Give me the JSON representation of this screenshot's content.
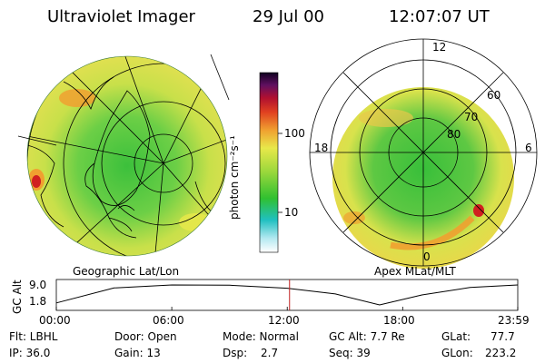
{
  "header": {
    "title": "Ultraviolet Imager",
    "date": "29 Jul 00",
    "time": "12:07:07 UT"
  },
  "colorbar": {
    "unit_label": "photon cm⁻²s⁻¹",
    "ticks": [
      "100",
      "10"
    ]
  },
  "geo_panel": {
    "label": "Geographic Lat/Lon"
  },
  "apex_panel": {
    "label": "Apex MLat/MLT",
    "mlt_labels": [
      "12",
      "18",
      "6",
      "0"
    ],
    "lat_labels": [
      "60",
      "70",
      "80"
    ]
  },
  "altitude_plot": {
    "axis_label": "GC Alt",
    "y_ticks": [
      "9.0",
      "1.8"
    ],
    "x_ticks": [
      "00:00",
      "06:00",
      "12:00",
      "18:00",
      "23:59"
    ],
    "current_time_hours": 12.12,
    "altitude_curve": [
      {
        "t": 0.0,
        "alt": 1.8
      },
      {
        "t": 3.0,
        "alt": 7.8
      },
      {
        "t": 6.0,
        "alt": 9.0
      },
      {
        "t": 9.0,
        "alt": 8.9
      },
      {
        "t": 12.0,
        "alt": 7.7
      },
      {
        "t": 14.5,
        "alt": 5.4
      },
      {
        "t": 16.8,
        "alt": 1.0
      },
      {
        "t": 19.0,
        "alt": 5.0
      },
      {
        "t": 21.5,
        "alt": 8.0
      },
      {
        "t": 23.98,
        "alt": 9.0
      }
    ]
  },
  "status": {
    "filter": "Flt: LBHL",
    "ip": "IP: 36.0",
    "door": "Door: Open",
    "gain": "Gain: 13",
    "mode": "Mode: Normal",
    "dsp": "Dsp:",
    "dsp_value": "2.7",
    "gc_alt": "GC Alt: 7.7 Re",
    "seq": "Seq: 39",
    "glat": "GLat:",
    "glat_value": "77.7",
    "glon": "GLon:",
    "glon_value": "223.2"
  },
  "colors": {
    "green": "#3cc03c",
    "lightgreen": "#8cd84a",
    "yellow": "#e8e84a",
    "orange": "#f0a030",
    "red": "#d02020",
    "cyan": "#20c0c0"
  }
}
